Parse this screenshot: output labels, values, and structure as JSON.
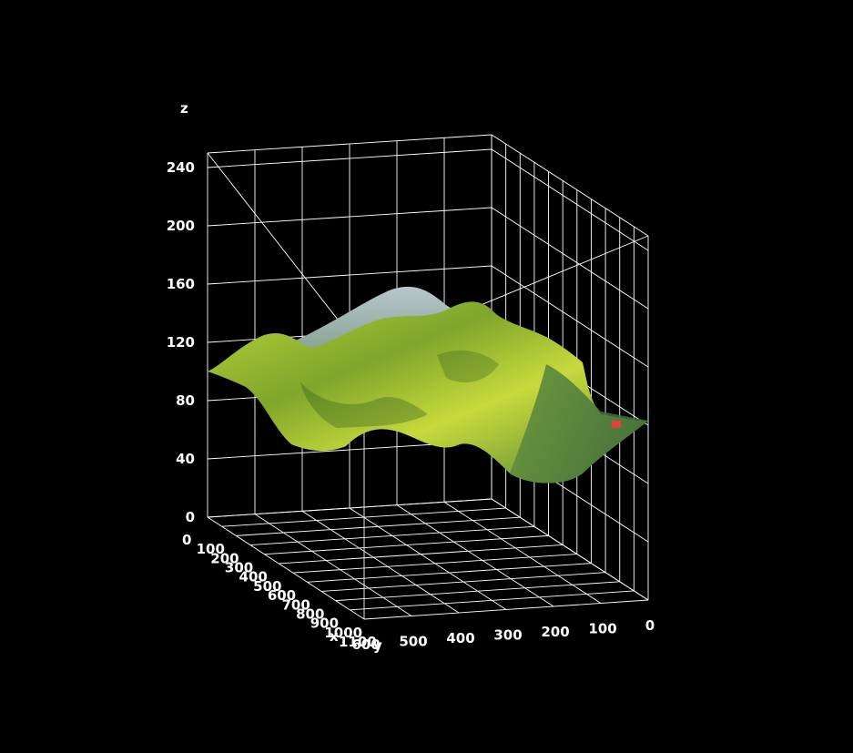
{
  "chart_data": {
    "type": "surface",
    "title": "",
    "xlabel": "x",
    "ylabel": "y",
    "zlabel": "z",
    "x_ticks": [
      0,
      100,
      200,
      300,
      400,
      500,
      600,
      700,
      800,
      900,
      1000,
      1100
    ],
    "y_ticks": [
      0,
      100,
      200,
      300,
      400,
      500,
      600
    ],
    "z_ticks": [
      0,
      40,
      80,
      120,
      160,
      200,
      240
    ],
    "xlim": [
      0,
      1100
    ],
    "ylim": [
      0,
      600
    ],
    "zlim": [
      0,
      250
    ],
    "grid": true,
    "texture": "aerial photo of green vegetation draped on terrain",
    "colors": {
      "background": "#000000",
      "grid": "#ffffff",
      "text": "#ffffff",
      "vegetation_light": "#c9dc3a",
      "vegetation_dark": "#2f5a1f",
      "peak": "#a9bcc4"
    },
    "surface_profile": {
      "description": "terrain heights (z) sampled along y from 600 to 0 at far (x=0) and near (x=1100) edges",
      "y": [
        600,
        500,
        400,
        300,
        200,
        100,
        0
      ],
      "z_far_edge": [
        100,
        115,
        140,
        158,
        140,
        110,
        85
      ],
      "z_near_edge": [
        100,
        85,
        60,
        95,
        70,
        40,
        80
      ]
    }
  }
}
